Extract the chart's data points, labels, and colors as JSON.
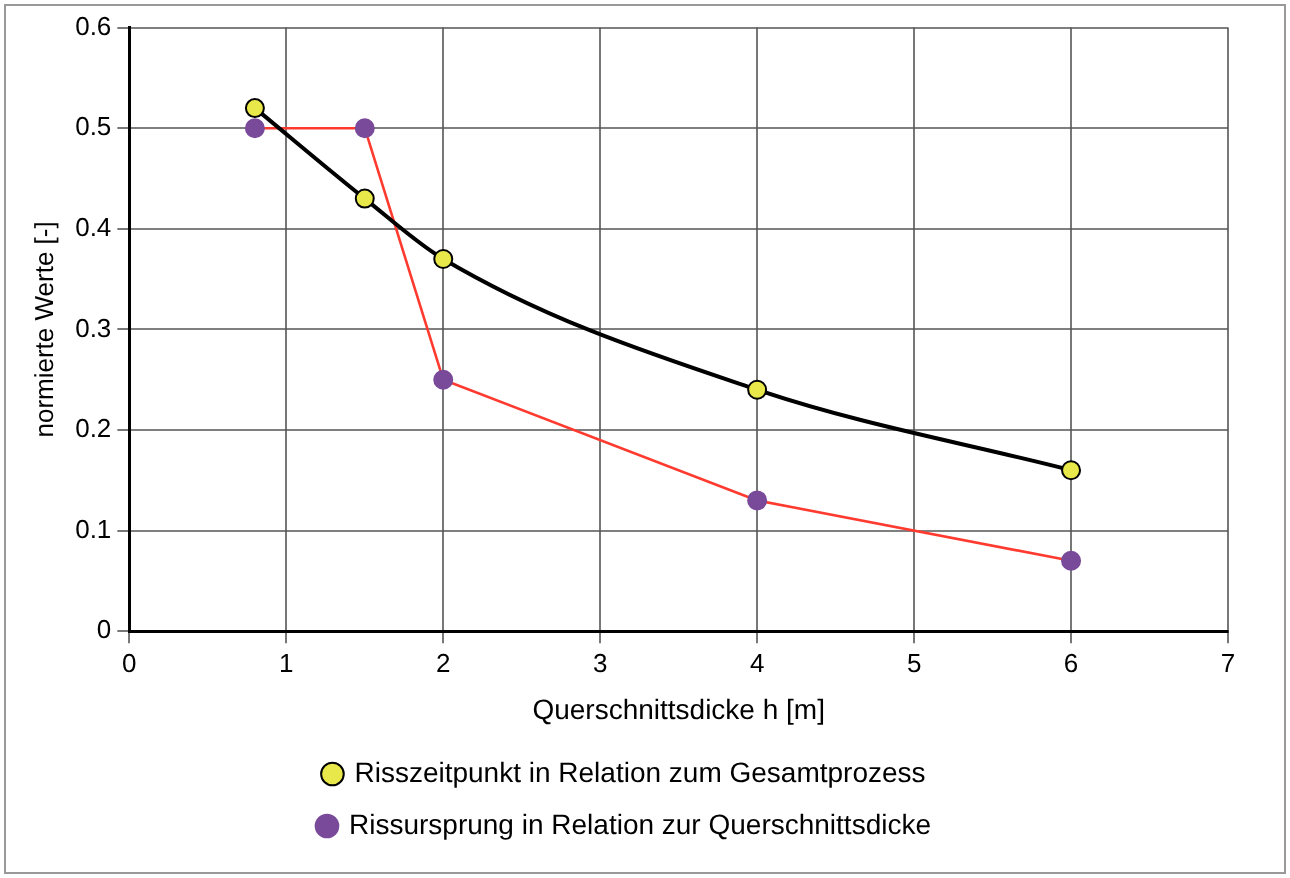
{
  "chart_data": {
    "type": "line",
    "xlabel": "Querschnittsdicke h [m]",
    "ylabel": "normierte Werte [-]",
    "xlim": [
      0,
      7
    ],
    "xticks": [
      0,
      1,
      2,
      3,
      4,
      5,
      6,
      7
    ],
    "ylim": [
      0,
      0.6
    ],
    "yticks": [
      0,
      0.1,
      0.2,
      0.3,
      0.4,
      0.5,
      0.6
    ],
    "grid": true,
    "legend": "bottom",
    "marker": "circle",
    "line_style": "solid",
    "series": [
      {
        "name": "Risszeitpunkt in Relation zum Gesamtprozess",
        "color": "#000000",
        "x": [
          0.8,
          1.5,
          2,
          4,
          6
        ],
        "values": [
          0.52,
          0.43,
          0.37,
          0.24,
          0.16
        ]
      },
      {
        "name": "Rissursprung in Relation zur Querschnittsdicke",
        "color": "#ff3b30",
        "x": [
          0.8,
          1.5,
          2,
          4,
          6
        ],
        "values": [
          0.5,
          0.5,
          0.25,
          0.13,
          0.07
        ]
      }
    ]
  }
}
